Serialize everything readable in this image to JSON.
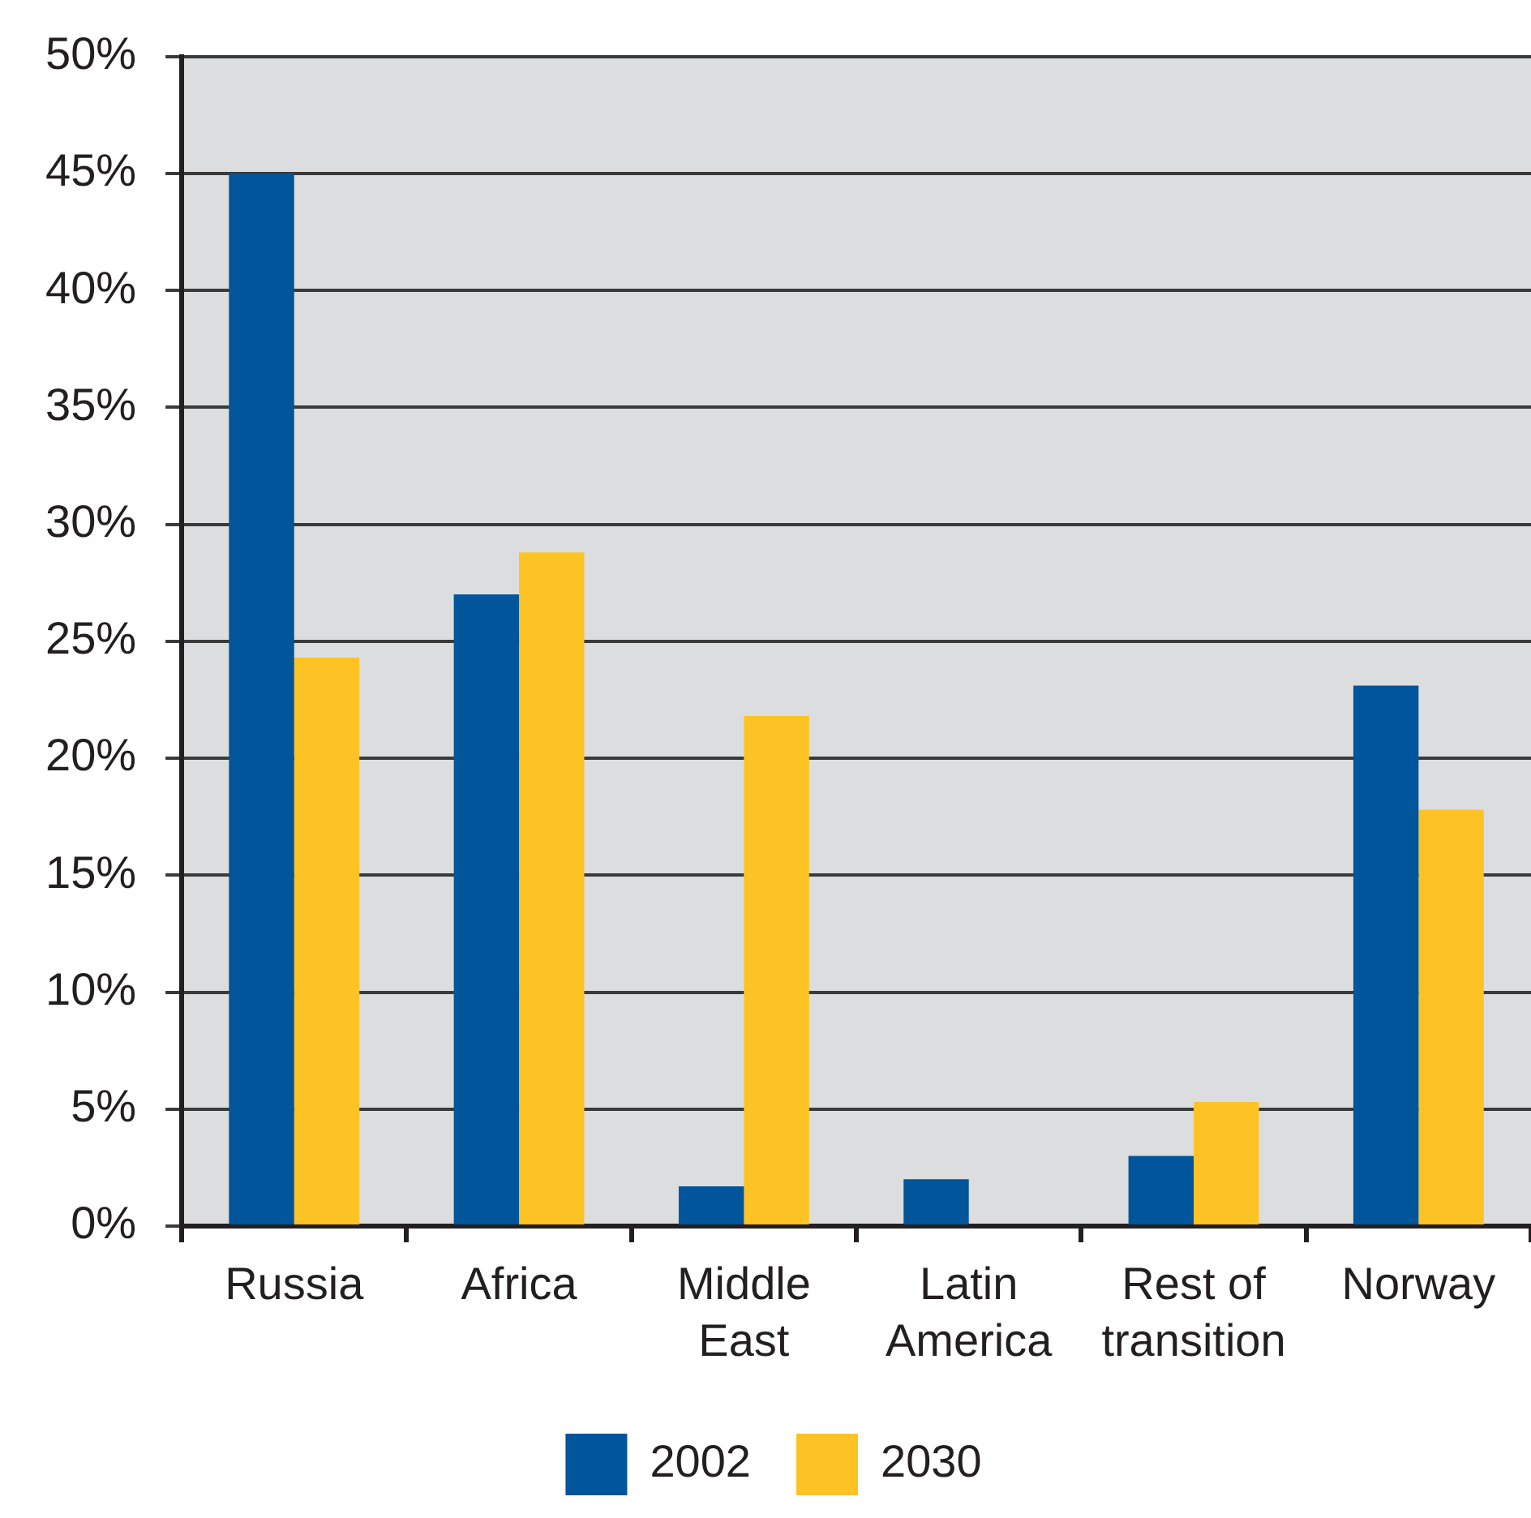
{
  "chart_data": {
    "type": "bar",
    "categories": [
      "Russia",
      "Africa",
      "Middle East",
      "Latin America",
      "Rest of transition",
      "Norway"
    ],
    "series": [
      {
        "name": "2002",
        "color": "#01559a",
        "values": [
          45.0,
          27.0,
          1.7,
          2.0,
          3.0,
          23.1
        ]
      },
      {
        "name": "2030",
        "color": "#fdc324",
        "values": [
          24.3,
          28.8,
          21.8,
          null,
          5.3,
          17.8
        ]
      }
    ],
    "ylim": [
      0,
      50
    ],
    "yticks": [
      {
        "value": 0,
        "label": "0%"
      },
      {
        "value": 5,
        "label": "5%"
      },
      {
        "value": 10,
        "label": "10%"
      },
      {
        "value": 15,
        "label": "15%"
      },
      {
        "value": 20,
        "label": "20%"
      },
      {
        "value": 25,
        "label": "25%"
      },
      {
        "value": 30,
        "label": "30%"
      },
      {
        "value": 35,
        "label": "35%"
      },
      {
        "value": 40,
        "label": "40%"
      },
      {
        "value": 45,
        "label": "45%"
      },
      {
        "value": 50,
        "label": "50%"
      }
    ],
    "grid": "y",
    "legend": "bottom"
  }
}
